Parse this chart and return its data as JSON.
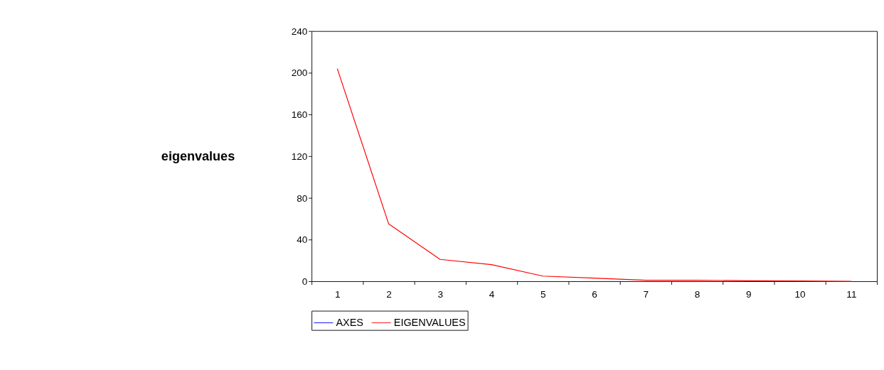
{
  "chart_data": {
    "type": "line",
    "ylabel": "eigenvalues",
    "categories": [
      "1",
      "2",
      "3",
      "4",
      "5",
      "6",
      "7",
      "8",
      "9",
      "10",
      "11"
    ],
    "series": [
      {
        "name": "AXES",
        "color": "#0000ff",
        "values": [
          null,
          null,
          null,
          null,
          null,
          null,
          null,
          null,
          null,
          null,
          null
        ]
      },
      {
        "name": "EIGENVALUES",
        "color": "#ff0000",
        "values": [
          204,
          55,
          21,
          16,
          5,
          3,
          1,
          1,
          0.5,
          0.3,
          0
        ]
      }
    ],
    "ylim": [
      0,
      240
    ],
    "yticks": [
      0,
      40,
      80,
      120,
      160,
      200,
      240
    ],
    "grid": false,
    "legend": "bottom",
    "marker": "none",
    "line_style": "solid"
  }
}
